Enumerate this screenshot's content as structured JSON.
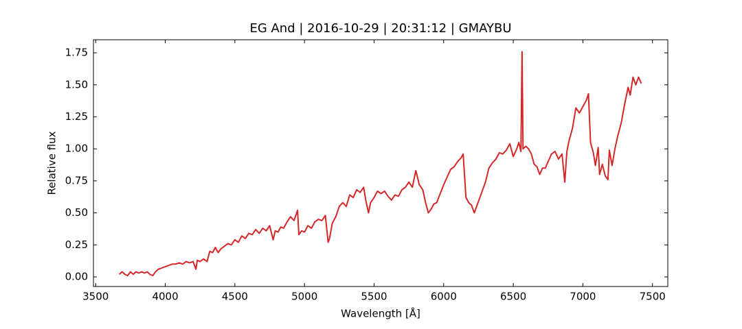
{
  "chart_data": {
    "type": "line",
    "title": "EG And | 2016-10-29 | 20:31:12 | GMAYBU",
    "x_label": "Wavelength [Å]",
    "y_label": "Relative flux",
    "x": [
      3670,
      3690,
      3710,
      3730,
      3750,
      3770,
      3790,
      3810,
      3830,
      3850,
      3870,
      3890,
      3910,
      3930,
      3950,
      3975,
      4000,
      4025,
      4050,
      4075,
      4100,
      4125,
      4150,
      4175,
      4200,
      4220,
      4230,
      4250,
      4275,
      4300,
      4320,
      4340,
      4360,
      4380,
      4400,
      4425,
      4450,
      4475,
      4500,
      4525,
      4550,
      4575,
      4600,
      4625,
      4650,
      4675,
      4700,
      4725,
      4750,
      4775,
      4790,
      4810,
      4830,
      4850,
      4875,
      4900,
      4925,
      4950,
      4960,
      4980,
      5000,
      5025,
      5050,
      5075,
      5100,
      5125,
      5150,
      5170,
      5180,
      5200,
      5225,
      5250,
      5275,
      5300,
      5325,
      5350,
      5375,
      5400,
      5425,
      5440,
      5460,
      5475,
      5500,
      5525,
      5550,
      5575,
      5600,
      5625,
      5650,
      5675,
      5700,
      5725,
      5750,
      5775,
      5800,
      5825,
      5850,
      5870,
      5890,
      5910,
      5930,
      5950,
      5975,
      6000,
      6025,
      6050,
      6075,
      6100,
      6125,
      6140,
      6160,
      6180,
      6200,
      6220,
      6240,
      6260,
      6280,
      6300,
      6325,
      6350,
      6375,
      6400,
      6425,
      6450,
      6475,
      6500,
      6525,
      6540,
      6555,
      6563,
      6570,
      6590,
      6610,
      6630,
      6650,
      6670,
      6690,
      6710,
      6730,
      6750,
      6775,
      6800,
      6825,
      6850,
      6870,
      6885,
      6900,
      6925,
      6950,
      6975,
      7000,
      7025,
      7040,
      7055,
      7075,
      7090,
      7110,
      7120,
      7140,
      7160,
      7180,
      7190,
      7210,
      7230,
      7250,
      7275,
      7300,
      7325,
      7340,
      7360,
      7380,
      7400,
      7420
    ],
    "series": [
      {
        "name": "EG And",
        "color": "#d62728",
        "values": [
          0.02,
          0.04,
          0.02,
          0.01,
          0.04,
          0.02,
          0.04,
          0.03,
          0.04,
          0.03,
          0.04,
          0.02,
          0.01,
          0.04,
          0.06,
          0.07,
          0.08,
          0.09,
          0.1,
          0.1,
          0.11,
          0.1,
          0.12,
          0.11,
          0.12,
          0.06,
          0.13,
          0.12,
          0.14,
          0.12,
          0.2,
          0.19,
          0.23,
          0.19,
          0.22,
          0.24,
          0.26,
          0.25,
          0.29,
          0.27,
          0.32,
          0.3,
          0.34,
          0.33,
          0.37,
          0.34,
          0.38,
          0.36,
          0.4,
          0.29,
          0.36,
          0.35,
          0.39,
          0.38,
          0.43,
          0.47,
          0.44,
          0.52,
          0.33,
          0.36,
          0.35,
          0.4,
          0.38,
          0.43,
          0.45,
          0.44,
          0.48,
          0.27,
          0.3,
          0.42,
          0.47,
          0.55,
          0.58,
          0.55,
          0.64,
          0.62,
          0.68,
          0.66,
          0.7,
          0.6,
          0.5,
          0.58,
          0.62,
          0.67,
          0.65,
          0.67,
          0.63,
          0.6,
          0.64,
          0.63,
          0.68,
          0.7,
          0.74,
          0.7,
          0.83,
          0.72,
          0.68,
          0.58,
          0.5,
          0.53,
          0.57,
          0.58,
          0.65,
          0.72,
          0.78,
          0.84,
          0.86,
          0.9,
          0.93,
          0.96,
          0.62,
          0.58,
          0.56,
          0.5,
          0.56,
          0.62,
          0.68,
          0.74,
          0.85,
          0.89,
          0.92,
          0.97,
          0.96,
          0.99,
          1.04,
          0.94,
          1.0,
          1.05,
          0.98,
          1.76,
          1.0,
          1.02,
          1.0,
          0.96,
          0.88,
          0.86,
          0.8,
          0.85,
          0.85,
          0.9,
          0.96,
          0.98,
          0.92,
          0.96,
          0.74,
          0.98,
          1.06,
          1.16,
          1.32,
          1.28,
          1.33,
          1.38,
          1.43,
          1.05,
          0.97,
          0.87,
          1.01,
          0.8,
          0.88,
          0.79,
          0.76,
          0.99,
          0.87,
          1.0,
          1.1,
          1.2,
          1.35,
          1.48,
          1.42,
          1.56,
          1.5,
          1.56,
          1.51
        ]
      }
    ],
    "xlim": [
      3484,
      7610
    ],
    "xticks": [
      3500,
      4000,
      4500,
      5000,
      5500,
      6000,
      6500,
      7000,
      7500
    ],
    "ylim": [
      -0.075,
      1.852
    ],
    "yticks": [
      {
        "value": 0,
        "label": "0.00"
      },
      {
        "value": 0.25,
        "label": "0.25"
      },
      {
        "value": 0.5,
        "label": "0.50"
      },
      {
        "value": 0.75,
        "label": "0.75"
      },
      {
        "value": 1,
        "label": "1.00"
      },
      {
        "value": 1.25,
        "label": "1.25"
      },
      {
        "value": 1.5,
        "label": "1.50"
      },
      {
        "value": 1.75,
        "label": "1.75"
      }
    ],
    "grid": false
  }
}
